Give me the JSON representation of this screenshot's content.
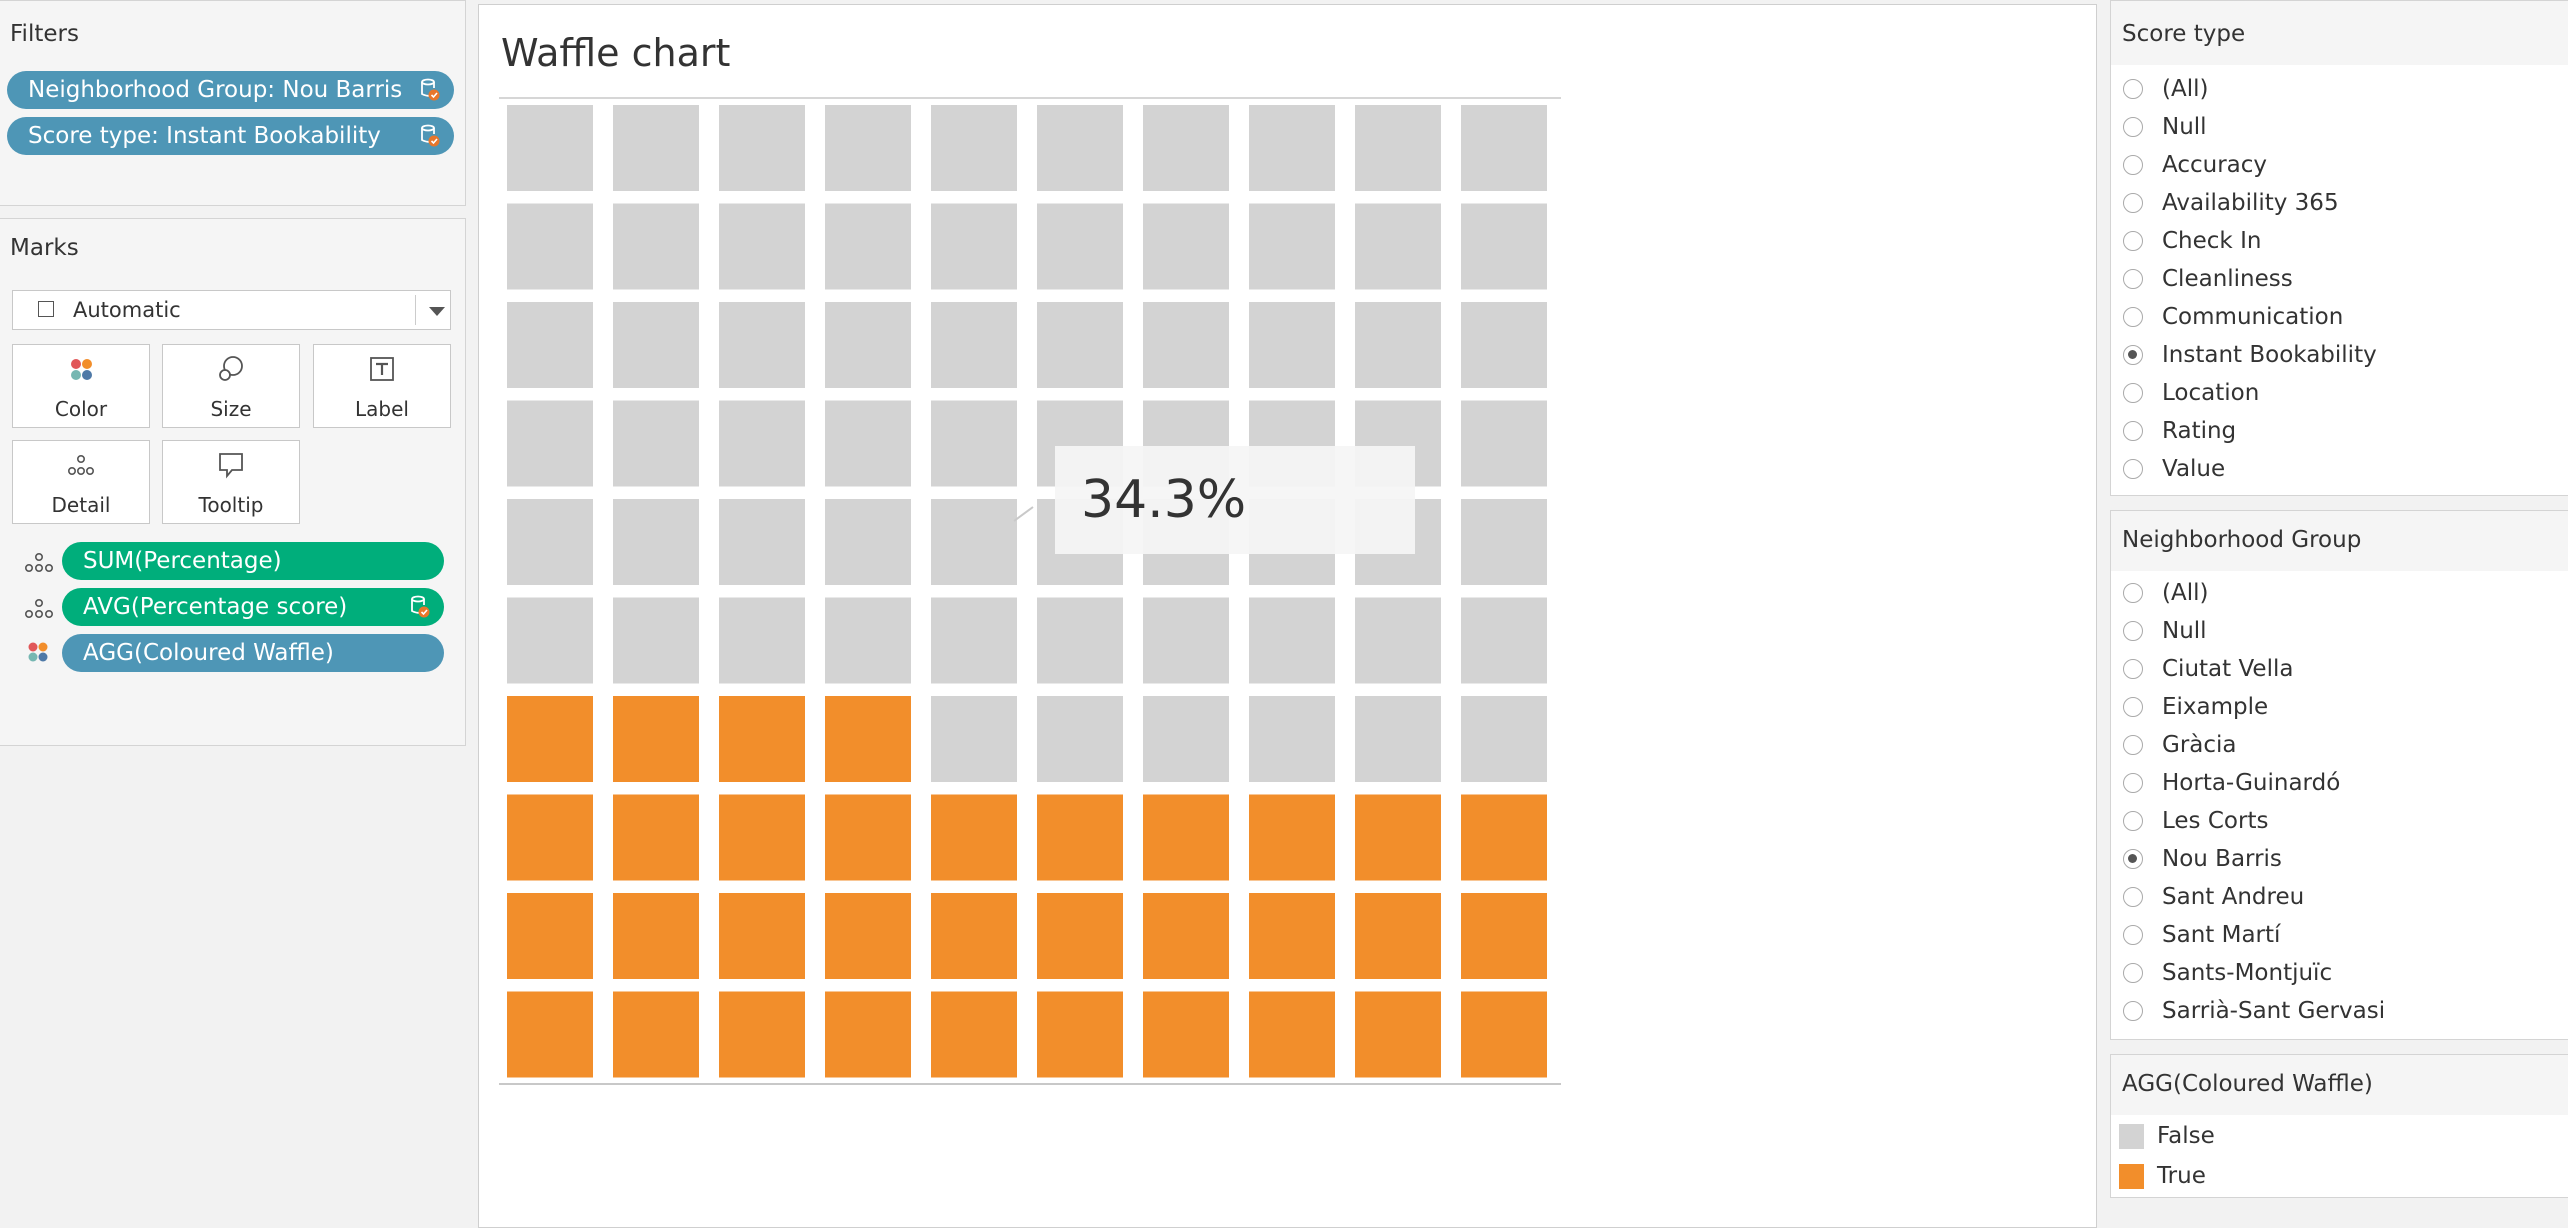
{
  "filters": {
    "title": "Filters",
    "pills": [
      "Neighborhood Group: Nou Barris",
      "Score type: Instant Bookability"
    ]
  },
  "marks": {
    "title": "Marks",
    "mark_type": "Automatic",
    "buttons": [
      "Color",
      "Size",
      "Label",
      "Detail",
      "Tooltip"
    ],
    "encodings": [
      {
        "label": "SUM(Percentage)",
        "icon": "detail-icon"
      },
      {
        "label": "AVG(Percentage score)",
        "icon": "detail-icon"
      },
      {
        "label": "AGG(Coloured Waffle)",
        "icon": "color-icon"
      }
    ]
  },
  "sheet": {
    "title": "Waffle chart",
    "callout": "34.3%"
  },
  "score_type": {
    "title": "Score type",
    "options": [
      "(All)",
      "Null",
      "Accuracy",
      "Availability 365",
      "Check In",
      "Cleanliness",
      "Communication",
      "Instant Bookability",
      "Location",
      "Rating",
      "Value"
    ],
    "selected": "Instant Bookability"
  },
  "neighborhood_group": {
    "title": "Neighborhood Group",
    "options": [
      "(All)",
      "Null",
      "Ciutat Vella",
      "Eixample",
      "Gràcia",
      "Horta-Guinardó",
      "Les Corts",
      "Nou Barris",
      "Sant Andreu",
      "Sant Martí",
      "Sants-Montjuïc",
      "Sarrià-Sant Gervasi"
    ],
    "selected": "Nou Barris"
  },
  "legend": {
    "title": "AGG(Coloured Waffle)",
    "items": [
      {
        "label": "False",
        "color": "#d3d3d3"
      },
      {
        "label": "True",
        "color": "#f28e2b"
      }
    ]
  },
  "chart_data": {
    "type": "heatmap",
    "title": "Waffle chart",
    "grid": {
      "rows": 10,
      "cols": 10
    },
    "percentage": 34.3,
    "filled_cells": 34,
    "categories": [
      "False",
      "True"
    ],
    "colors": {
      "False": "#d3d3d3",
      "True": "#f28e2b"
    }
  }
}
